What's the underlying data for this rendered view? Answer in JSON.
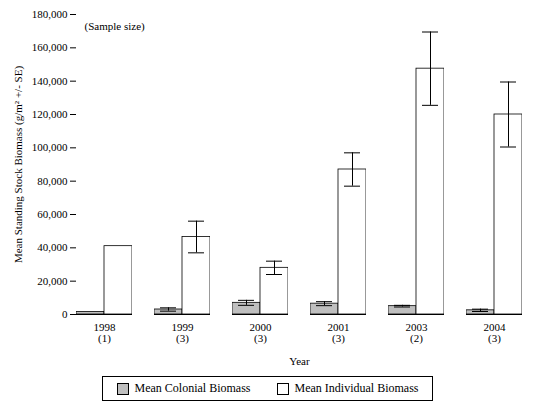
{
  "chart_data": {
    "type": "bar",
    "annotation": "(Sample size)",
    "y_label": "Mean Standing Stock Biomass (g/m² +/- SE)",
    "x_label": "Year",
    "categories": [
      "1998\n(1)",
      "1999\n(3)",
      "2000\n(3)",
      "2001\n(3)",
      "2003\n(2)",
      "2004\n(3)"
    ],
    "series": [
      {
        "name": "Mean Colonial Biomass",
        "color": "#bfbfbf",
        "values": [
          1500,
          3000,
          7000,
          6500,
          5000,
          2500
        ],
        "errors": [
          null,
          1000,
          1500,
          1200,
          500,
          700
        ]
      },
      {
        "name": "Mean Individual Biomass",
        "color": "#ffffff",
        "values": [
          41000,
          46500,
          28000,
          87000,
          147500,
          120000
        ],
        "errors": [
          null,
          9500,
          4000,
          10000,
          22000,
          19500
        ]
      }
    ],
    "ylim": [
      0,
      180000
    ],
    "yticks": [
      0,
      {
        "value": 20000,
        "label": "20,000"
      },
      {
        "value": 40000,
        "label": "40,000"
      },
      {
        "value": 60000,
        "label": "60,000"
      },
      {
        "value": 80000,
        "label": "80,000"
      },
      {
        "value": 100000,
        "label": "100,000"
      },
      {
        "value": 120000,
        "label": "120,000"
      },
      {
        "value": 140000,
        "label": "140,000"
      },
      {
        "value": 160000,
        "label": "160,000"
      },
      {
        "value": 180000,
        "label": "180,000"
      }
    ],
    "legend": "bottom",
    "grid": false
  }
}
